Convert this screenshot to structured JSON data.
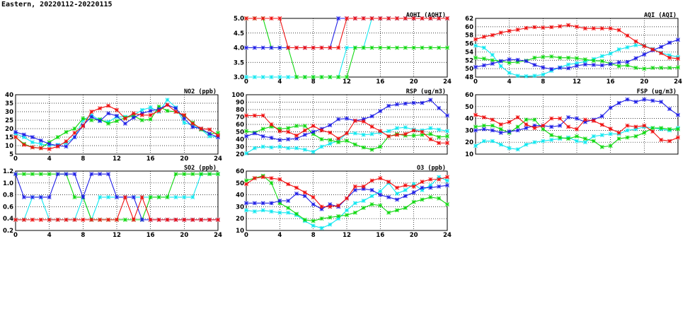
{
  "header": {
    "title": "Eastern, 20220112-20220115"
  },
  "series_colors": {
    "blue": "#1f1fe6",
    "red": "#f01010",
    "green": "#10d810",
    "cyan": "#10e8f0"
  },
  "chart_data": [
    {
      "id": "no2",
      "type": "line",
      "title": "NO2 (ppb)",
      "xlim": [
        0,
        24
      ],
      "xticks": [
        "0",
        "4",
        "8",
        "12",
        "16",
        "20",
        "24"
      ],
      "ylim": [
        5,
        40
      ],
      "yticks": [
        "5",
        "10",
        "15",
        "20",
        "25",
        "30",
        "35",
        "40"
      ],
      "series": [
        {
          "name": "cyan",
          "values": [
            17,
            15,
            12,
            11,
            10,
            10.5,
            11.5,
            15,
            25,
            28,
            25,
            24,
            27,
            27,
            28,
            31,
            32.5,
            30,
            37,
            32.5,
            23.5,
            22,
            19.5,
            15.5,
            15
          ]
        },
        {
          "name": "green",
          "values": [
            15,
            11,
            9,
            8.5,
            12,
            15,
            18,
            20,
            26,
            25,
            25.5,
            23,
            24.5,
            26.5,
            27.5,
            25,
            25.5,
            33,
            30.5,
            30,
            27.5,
            23.5,
            19.5,
            17,
            17.5
          ]
        },
        {
          "name": "blue",
          "values": [
            18,
            16.5,
            15,
            13,
            11,
            10,
            9.5,
            15,
            22,
            27,
            24.5,
            29,
            27.5,
            23,
            26.5,
            29,
            30.5,
            31.5,
            34,
            32,
            26,
            21,
            20,
            17,
            15
          ]
        },
        {
          "name": "red",
          "values": [
            15,
            10.5,
            9,
            8.5,
            8,
            9.5,
            12.5,
            17.5,
            21.5,
            30,
            32,
            33.5,
            31,
            26,
            29,
            28,
            28,
            30.5,
            34,
            30,
            28,
            23,
            20,
            19.5,
            16
          ]
        }
      ]
    },
    {
      "id": "so2",
      "type": "line",
      "title": "SO2 (ppb)",
      "xlim": [
        0,
        24
      ],
      "xticks": [
        "0",
        "4",
        "8",
        "12",
        "16",
        "20",
        "24"
      ],
      "ylim": [
        0.2,
        1.2
      ],
      "yticks": [
        "0.2",
        "0.4",
        "0.6",
        "0.8",
        "1.0",
        "1.2"
      ],
      "series": [
        {
          "name": "cyan",
          "values": [
            0.38,
            0.38,
            0.76,
            0.76,
            0.38,
            0.38,
            0.38,
            0.38,
            0.76,
            0.38,
            0.76,
            0.76,
            0.76,
            0.76,
            0.76,
            0.76,
            0.76,
            0.76,
            0.76,
            0.76,
            0.76,
            0.76,
            1.15,
            1.15,
            1.15
          ]
        },
        {
          "name": "green",
          "values": [
            1.15,
            1.15,
            1.15,
            1.15,
            1.15,
            1.15,
            1.15,
            0.76,
            0.76,
            0.38,
            0.38,
            0.38,
            0.38,
            0.38,
            0.38,
            0.38,
            0.76,
            0.76,
            0.76,
            1.15,
            1.15,
            1.15,
            1.15,
            1.15,
            1.15
          ]
        },
        {
          "name": "blue",
          "values": [
            1.15,
            0.76,
            0.76,
            0.76,
            0.76,
            1.15,
            1.15,
            1.15,
            0.76,
            1.15,
            1.15,
            1.15,
            0.76,
            0.76,
            0.76,
            0.38,
            0.38,
            0.38,
            0.38,
            0.38,
            0.38,
            0.38,
            0.38,
            0.38,
            0.38
          ]
        },
        {
          "name": "red",
          "values": [
            0.38,
            0.38,
            0.38,
            0.38,
            0.38,
            0.38,
            0.38,
            0.38,
            0.38,
            0.38,
            0.38,
            0.38,
            0.38,
            0.76,
            0.38,
            0.76,
            0.38,
            0.38,
            0.38,
            0.38,
            0.38,
            0.38,
            0.38,
            0.38,
            0.38
          ]
        }
      ]
    },
    {
      "id": "aqhi",
      "type": "line",
      "title": "AQHI (AQHI)",
      "xlim": [
        0,
        24
      ],
      "xticks": [
        "0",
        "4",
        "8",
        "12",
        "16",
        "20",
        "24"
      ],
      "ylim": [
        3,
        5
      ],
      "yticks": [
        "3.0",
        "3.5",
        "4.0",
        "4.5",
        "5.0"
      ],
      "series": [
        {
          "name": "cyan",
          "values": [
            3,
            3,
            3,
            3,
            3,
            3,
            3,
            3,
            3,
            3,
            3,
            3,
            4,
            4,
            4,
            5,
            5,
            5,
            5,
            5,
            5,
            5,
            5,
            5,
            5
          ]
        },
        {
          "name": "green",
          "values": [
            5,
            5,
            5,
            4,
            4,
            4,
            3,
            3,
            3,
            3,
            3,
            3,
            3,
            4,
            4,
            4,
            4,
            4,
            4,
            4,
            4,
            4,
            4,
            4,
            4
          ]
        },
        {
          "name": "blue",
          "values": [
            4,
            4,
            4,
            4,
            4,
            4,
            4,
            4,
            4,
            4,
            4,
            5,
            5,
            5,
            5,
            5,
            5,
            5,
            5,
            5,
            5,
            5,
            5,
            5,
            5
          ]
        },
        {
          "name": "red",
          "values": [
            5,
            5,
            5,
            5,
            5,
            4,
            4,
            4,
            4,
            4,
            4,
            4,
            5,
            5,
            5,
            5,
            5,
            5,
            5,
            5,
            5,
            5,
            5,
            5,
            5
          ]
        }
      ]
    },
    {
      "id": "rsp",
      "type": "line",
      "title": "RSP (ug/m3)",
      "xlim": [
        0,
        24
      ],
      "xticks": [
        "0",
        "4",
        "8",
        "12",
        "16",
        "20",
        "24"
      ],
      "ylim": [
        20,
        100
      ],
      "yticks": [
        "20",
        "30",
        "40",
        "50",
        "60",
        "70",
        "80",
        "90",
        "100"
      ],
      "series": [
        {
          "name": "cyan",
          "values": [
            21,
            28,
            30,
            29,
            30,
            28,
            28,
            26,
            23,
            30,
            34,
            38,
            48,
            48,
            46,
            47,
            49,
            51,
            55,
            56,
            53,
            52,
            55,
            53,
            51
          ]
        },
        {
          "name": "green",
          "values": [
            51,
            49,
            54,
            57,
            54,
            55,
            58,
            58,
            47,
            40,
            39,
            36,
            38,
            33,
            29,
            26,
            30,
            44,
            47,
            45,
            45,
            46,
            47,
            43,
            44
          ]
        },
        {
          "name": "blue",
          "values": [
            44,
            48,
            44,
            42,
            39,
            40,
            41,
            46,
            50,
            54,
            59,
            67,
            68,
            65,
            67,
            71,
            78,
            85,
            87,
            88,
            89,
            89,
            93,
            82,
            72
          ]
        },
        {
          "name": "red",
          "values": [
            72,
            72,
            72,
            60,
            51,
            50,
            45,
            52,
            58,
            52,
            49,
            41,
            48,
            65,
            64,
            57,
            51,
            44,
            46,
            47,
            52,
            50,
            40,
            35,
            35
          ]
        }
      ]
    },
    {
      "id": "o3",
      "type": "line",
      "title": "O3 (ppb)",
      "xlim": [
        0,
        24
      ],
      "xticks": [
        "0",
        "4",
        "8",
        "12",
        "16",
        "20",
        "24"
      ],
      "ylim": [
        10,
        60
      ],
      "yticks": [
        "10",
        "20",
        "30",
        "40",
        "50",
        "60"
      ],
      "series": [
        {
          "name": "cyan",
          "values": [
            27,
            26,
            27,
            26,
            25,
            25,
            23,
            18,
            14,
            12,
            15,
            20,
            27,
            33,
            35,
            39,
            43,
            50,
            41,
            44,
            49,
            44,
            48,
            55,
            52
          ]
        },
        {
          "name": "green",
          "values": [
            52,
            54,
            56,
            50,
            33,
            29,
            24,
            19,
            18,
            20,
            21,
            22,
            23,
            25,
            29,
            32,
            31,
            25,
            27,
            29,
            34,
            36,
            38,
            37,
            32
          ]
        },
        {
          "name": "blue",
          "values": [
            33,
            33,
            33,
            33,
            35,
            35,
            41,
            39,
            32,
            28,
            32,
            30,
            37,
            44,
            45,
            44,
            40,
            38,
            36,
            39,
            42,
            46,
            46,
            47,
            48
          ]
        },
        {
          "name": "red",
          "values": [
            49,
            54,
            55,
            54,
            53,
            49,
            46,
            42,
            38,
            30,
            30,
            31,
            37,
            47,
            47,
            52,
            54,
            51,
            46,
            48,
            47,
            51,
            53,
            53,
            55
          ]
        }
      ]
    },
    {
      "id": "aqi",
      "type": "line",
      "title": "AQI (AQI)",
      "xlim": [
        0,
        24
      ],
      "xticks": [
        "0",
        "4",
        "8",
        "12",
        "16",
        "20",
        "24"
      ],
      "ylim": [
        48,
        62
      ],
      "yticks": [
        "48",
        "50",
        "52",
        "54",
        "56",
        "58",
        "60",
        "62"
      ],
      "series": [
        {
          "name": "cyan",
          "values": [
            55.5,
            55,
            53.3,
            50.6,
            49,
            48.3,
            48.2,
            48.3,
            48.6,
            49.5,
            50.3,
            51,
            51.3,
            51.7,
            52.3,
            53,
            53.6,
            54.6,
            55.1,
            55.6,
            55.5,
            54.7,
            53.8,
            53.2,
            52.8
          ]
        },
        {
          "name": "green",
          "values": [
            52.6,
            52.4,
            52,
            51.8,
            51.4,
            51.6,
            51.9,
            52.6,
            52.8,
            52.9,
            52.6,
            52.6,
            52.5,
            52.2,
            51.9,
            51.8,
            51.2,
            50.6,
            50.8,
            50.2,
            50,
            50.2,
            50.2,
            50.2,
            50.3
          ]
        },
        {
          "name": "blue",
          "values": [
            50.4,
            50.8,
            51.2,
            51.8,
            52.2,
            52.1,
            51.8,
            50.9,
            50.3,
            49.9,
            50.2,
            50.1,
            50.7,
            51,
            50.9,
            50.8,
            51.1,
            51.5,
            51.6,
            52.5,
            53.4,
            54.4,
            55.2,
            56.2,
            56.9
          ]
        },
        {
          "name": "red",
          "values": [
            57,
            57.6,
            58,
            58.6,
            59,
            59.3,
            59.7,
            59.9,
            59.8,
            59.9,
            60.1,
            60.4,
            60,
            59.6,
            59.6,
            59.6,
            59.6,
            59.2,
            57.9,
            56.5,
            55.4,
            54.6,
            53.7,
            52.6,
            52.4
          ]
        }
      ]
    },
    {
      "id": "fsp",
      "type": "line",
      "title": "FSP (ug/m3)",
      "xlim": [
        0,
        24
      ],
      "xticks": [
        "0",
        "4",
        "8",
        "12",
        "16",
        "20",
        "24"
      ],
      "ylim": [
        10,
        60
      ],
      "yticks": [
        "10",
        "20",
        "30",
        "40",
        "50",
        "60"
      ],
      "series": [
        {
          "name": "cyan",
          "values": [
            17,
            21,
            21,
            18,
            15,
            14,
            18,
            20,
            21,
            22,
            23,
            24,
            21,
            20,
            25,
            26,
            27,
            27,
            30,
            31,
            33,
            32,
            31,
            30,
            32
          ]
        },
        {
          "name": "green",
          "values": [
            33,
            34,
            34,
            31,
            28,
            33,
            39,
            39,
            31,
            26,
            24,
            23,
            25,
            23,
            21,
            16,
            17,
            23,
            24,
            25,
            28,
            32,
            32,
            31,
            31
          ]
        },
        {
          "name": "blue",
          "values": [
            30,
            31,
            30,
            28,
            29,
            30,
            32,
            34,
            34,
            33,
            34,
            41,
            40,
            37,
            39,
            42,
            49,
            53,
            56,
            54,
            56,
            55,
            54,
            48,
            43
          ]
        },
        {
          "name": "red",
          "values": [
            43,
            41,
            39,
            35,
            37,
            41,
            35,
            32,
            34,
            40,
            40,
            33,
            31,
            39,
            38,
            34.7,
            31.3,
            28,
            34,
            33,
            34,
            29,
            22,
            21,
            24
          ]
        }
      ]
    }
  ]
}
